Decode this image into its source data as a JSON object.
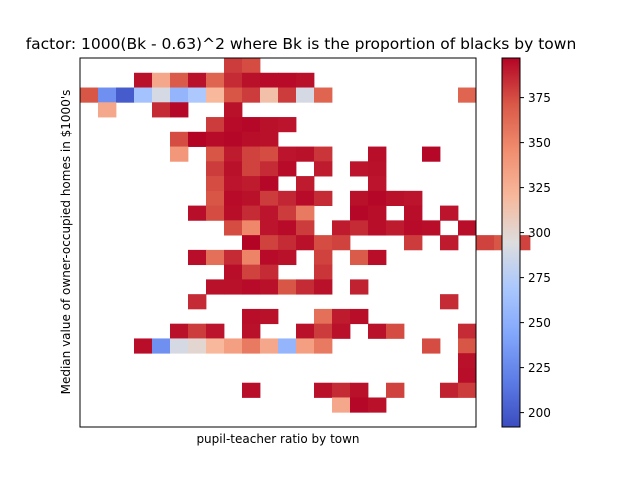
{
  "chart_data": {
    "type": "heatmap",
    "title": "factor: 1000(Bk - 0.63)^2 where Bk is the proportion of blacks by town",
    "xlabel": "pupil-teacher ratio by town",
    "ylabel": "Median value of owner-occupied homes in $1000's",
    "colormap": "coolwarm",
    "colorbar": {
      "min": 192,
      "max": 397,
      "ticks": [
        200,
        225,
        250,
        275,
        300,
        325,
        350,
        375
      ]
    },
    "grid": false,
    "n_cols": 22,
    "n_rows": 25,
    "cells": [
      [
        0,
        8,
        380
      ],
      [
        0,
        9,
        375
      ],
      [
        1,
        3,
        393
      ],
      [
        1,
        4,
        330
      ],
      [
        1,
        5,
        370
      ],
      [
        1,
        6,
        393
      ],
      [
        1,
        7,
        365
      ],
      [
        1,
        8,
        385
      ],
      [
        1,
        9,
        393
      ],
      [
        1,
        10,
        395
      ],
      [
        1,
        11,
        395
      ],
      [
        1,
        12,
        393
      ],
      [
        2,
        0,
        372
      ],
      [
        2,
        1,
        230
      ],
      [
        2,
        2,
        200
      ],
      [
        2,
        3,
        265
      ],
      [
        2,
        4,
        290
      ],
      [
        2,
        5,
        255
      ],
      [
        2,
        6,
        270
      ],
      [
        2,
        7,
        320
      ],
      [
        2,
        8,
        372
      ],
      [
        2,
        9,
        380
      ],
      [
        2,
        10,
        315
      ],
      [
        2,
        11,
        380
      ],
      [
        2,
        12,
        290
      ],
      [
        2,
        13,
        365
      ],
      [
        2,
        21,
        365
      ],
      [
        3,
        1,
        330
      ],
      [
        3,
        4,
        385
      ],
      [
        3,
        5,
        396
      ],
      [
        3,
        8,
        393
      ],
      [
        4,
        7,
        380
      ],
      [
        4,
        8,
        395
      ],
      [
        4,
        9,
        396
      ],
      [
        4,
        10,
        393
      ],
      [
        4,
        11,
        392
      ],
      [
        5,
        5,
        375
      ],
      [
        5,
        6,
        397
      ],
      [
        5,
        7,
        395
      ],
      [
        5,
        8,
        396
      ],
      [
        5,
        9,
        394
      ],
      [
        5,
        10,
        393
      ],
      [
        6,
        5,
        340
      ],
      [
        6,
        7,
        372
      ],
      [
        6,
        8,
        390
      ],
      [
        6,
        9,
        378
      ],
      [
        6,
        10,
        375
      ],
      [
        6,
        11,
        392
      ],
      [
        6,
        12,
        393
      ],
      [
        6,
        13,
        382
      ],
      [
        6,
        16,
        394
      ],
      [
        6,
        19,
        396
      ],
      [
        7,
        7,
        380
      ],
      [
        7,
        8,
        393
      ],
      [
        7,
        9,
        378
      ],
      [
        7,
        10,
        385
      ],
      [
        7,
        11,
        395
      ],
      [
        7,
        13,
        390
      ],
      [
        7,
        15,
        392
      ],
      [
        7,
        16,
        393
      ],
      [
        8,
        7,
        375
      ],
      [
        8,
        8,
        392
      ],
      [
        8,
        9,
        390
      ],
      [
        8,
        10,
        396
      ],
      [
        8,
        12,
        390
      ],
      [
        8,
        16,
        392
      ],
      [
        9,
        7,
        372
      ],
      [
        9,
        8,
        395
      ],
      [
        9,
        9,
        393
      ],
      [
        9,
        10,
        380
      ],
      [
        9,
        11,
        387
      ],
      [
        9,
        12,
        395
      ],
      [
        9,
        13,
        385
      ],
      [
        9,
        15,
        393
      ],
      [
        9,
        16,
        396
      ],
      [
        9,
        17,
        393
      ],
      [
        9,
        18,
        392
      ],
      [
        10,
        6,
        394
      ],
      [
        10,
        7,
        375
      ],
      [
        10,
        8,
        394
      ],
      [
        10,
        9,
        385
      ],
      [
        10,
        10,
        392
      ],
      [
        10,
        11,
        380
      ],
      [
        10,
        12,
        355
      ],
      [
        10,
        15,
        396
      ],
      [
        10,
        16,
        394
      ],
      [
        10,
        18,
        394
      ],
      [
        10,
        20,
        392
      ],
      [
        11,
        8,
        375
      ],
      [
        11,
        9,
        348
      ],
      [
        11,
        10,
        392
      ],
      [
        11,
        11,
        395
      ],
      [
        11,
        12,
        380
      ],
      [
        11,
        14,
        390
      ],
      [
        11,
        15,
        385
      ],
      [
        11,
        16,
        394
      ],
      [
        11,
        17,
        390
      ],
      [
        11,
        18,
        395
      ],
      [
        11,
        19,
        394
      ],
      [
        11,
        21,
        394
      ],
      [
        12,
        9,
        397
      ],
      [
        12,
        10,
        378
      ],
      [
        12,
        11,
        385
      ],
      [
        12,
        12,
        393
      ],
      [
        12,
        13,
        375
      ],
      [
        12,
        14,
        378
      ],
      [
        12,
        18,
        380
      ],
      [
        12,
        20,
        390
      ],
      [
        12,
        22,
        378
      ],
      [
        12,
        23,
        372
      ],
      [
        12,
        24,
        378
      ],
      [
        13,
        6,
        394
      ],
      [
        13,
        7,
        360
      ],
      [
        13,
        8,
        385
      ],
      [
        13,
        9,
        350
      ],
      [
        13,
        10,
        395
      ],
      [
        13,
        11,
        393
      ],
      [
        13,
        13,
        378
      ],
      [
        13,
        15,
        370
      ],
      [
        13,
        16,
        394
      ],
      [
        14,
        8,
        394
      ],
      [
        14,
        9,
        378
      ],
      [
        14,
        10,
        385
      ],
      [
        14,
        13,
        382
      ],
      [
        15,
        7,
        393
      ],
      [
        15,
        8,
        393
      ],
      [
        15,
        9,
        395
      ],
      [
        15,
        10,
        393
      ],
      [
        15,
        11,
        372
      ],
      [
        15,
        12,
        385
      ],
      [
        15,
        13,
        393
      ],
      [
        15,
        15,
        388
      ],
      [
        16,
        6,
        385
      ],
      [
        16,
        20,
        385
      ],
      [
        17,
        9,
        394
      ],
      [
        17,
        10,
        393
      ],
      [
        17,
        13,
        360
      ],
      [
        17,
        14,
        390
      ],
      [
        17,
        15,
        394
      ],
      [
        18,
        5,
        393
      ],
      [
        18,
        6,
        380
      ],
      [
        18,
        7,
        392
      ],
      [
        18,
        9,
        393
      ],
      [
        18,
        12,
        393
      ],
      [
        18,
        13,
        380
      ],
      [
        18,
        14,
        393
      ],
      [
        18,
        16,
        393
      ],
      [
        18,
        17,
        375
      ],
      [
        18,
        21,
        385
      ],
      [
        19,
        3,
        394
      ],
      [
        19,
        4,
        230
      ],
      [
        19,
        5,
        290
      ],
      [
        19,
        6,
        300
      ],
      [
        19,
        7,
        320
      ],
      [
        19,
        8,
        335
      ],
      [
        19,
        9,
        355
      ],
      [
        19,
        10,
        330
      ],
      [
        19,
        11,
        255
      ],
      [
        19,
        12,
        335
      ],
      [
        19,
        13,
        355
      ],
      [
        19,
        19,
        375
      ],
      [
        19,
        21,
        372
      ],
      [
        20,
        21,
        393
      ],
      [
        21,
        21,
        394
      ],
      [
        22,
        9,
        394
      ],
      [
        22,
        13,
        393
      ],
      [
        22,
        14,
        385
      ],
      [
        22,
        15,
        393
      ],
      [
        22,
        17,
        378
      ],
      [
        22,
        20,
        388
      ],
      [
        22,
        21,
        380
      ],
      [
        23,
        14,
        330
      ],
      [
        23,
        15,
        396
      ],
      [
        23,
        16,
        393
      ]
    ]
  }
}
